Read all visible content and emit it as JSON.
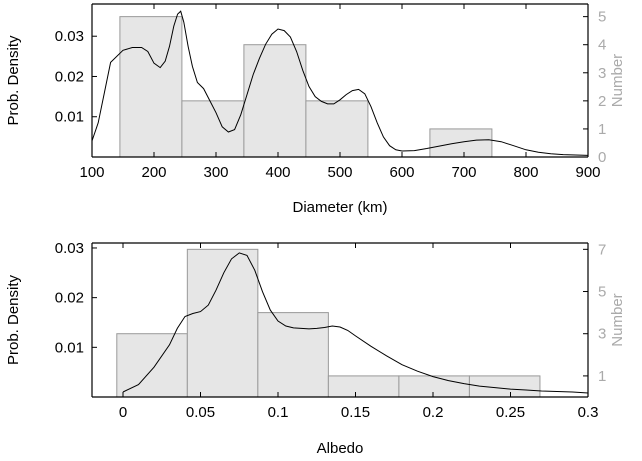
{
  "chart_data": [
    {
      "type": "bar",
      "xlabel": "Diameter (km)",
      "ylabel": "Prob. Density",
      "ylabel_right": "Number",
      "xlim": [
        100,
        900
      ],
      "ylim": [
        0,
        0.038
      ],
      "ylim_right": [
        0,
        5.45
      ],
      "x_ticks": [
        100,
        200,
        300,
        400,
        500,
        600,
        700,
        800,
        900
      ],
      "x_tick_labels": [
        "100",
        "200",
        "300",
        "400",
        "500",
        "600",
        "700",
        "800",
        "900"
      ],
      "y_ticks": [
        0.01,
        0.02,
        0.03
      ],
      "y_tick_labels": [
        "0.01",
        "0.02",
        "0.03"
      ],
      "y_right_ticks": [
        0,
        1,
        2,
        3,
        4,
        5
      ],
      "y_right_tick_labels": [
        "0",
        "1",
        "2",
        "3",
        "4",
        "5"
      ],
      "bar_color": "#e6e6e6",
      "bar_edge": "#999999",
      "histogram": {
        "bin_edges": [
          145,
          245,
          345,
          445,
          545,
          645,
          745
        ],
        "counts": [
          5,
          2,
          4,
          2,
          0,
          1
        ]
      },
      "density_curve": {
        "x": [
          100,
          110,
          120,
          130,
          150,
          165,
          180,
          190,
          200,
          210,
          218,
          225,
          232,
          238,
          243,
          248,
          255,
          262,
          270,
          280,
          290,
          300,
          310,
          320,
          330,
          340,
          350,
          360,
          370,
          380,
          390,
          400,
          410,
          420,
          430,
          440,
          450,
          460,
          470,
          480,
          490,
          500,
          510,
          520,
          530,
          540,
          550,
          560,
          570,
          580,
          590,
          600,
          620,
          640,
          660,
          680,
          700,
          720,
          740,
          760,
          780,
          800,
          820,
          840,
          860,
          880,
          900
        ],
        "y": [
          0.004,
          0.0085,
          0.016,
          0.0235,
          0.0265,
          0.0272,
          0.0272,
          0.0262,
          0.0233,
          0.0222,
          0.0238,
          0.0275,
          0.0325,
          0.0355,
          0.0362,
          0.0335,
          0.0275,
          0.0225,
          0.0185,
          0.017,
          0.014,
          0.011,
          0.0075,
          0.0062,
          0.0068,
          0.0105,
          0.0155,
          0.0205,
          0.0245,
          0.028,
          0.0305,
          0.0318,
          0.0314,
          0.0298,
          0.0262,
          0.0215,
          0.0175,
          0.015,
          0.0138,
          0.0132,
          0.0132,
          0.0142,
          0.0155,
          0.0165,
          0.0168,
          0.0157,
          0.0125,
          0.0085,
          0.005,
          0.0028,
          0.0018,
          0.0015,
          0.0016,
          0.0021,
          0.0027,
          0.0033,
          0.0038,
          0.0042,
          0.0043,
          0.0038,
          0.0028,
          0.0018,
          0.0012,
          0.0008,
          0.0006,
          0.0005,
          0.0004
        ]
      }
    },
    {
      "type": "bar",
      "xlabel": "Albedo",
      "ylabel": "Prob. Density",
      "ylabel_right": "Number",
      "xlim": [
        -0.02,
        0.3
      ],
      "ylim": [
        0,
        0.031
      ],
      "ylim_right": [
        0,
        7.3
      ],
      "x_ticks": [
        0,
        0.05,
        0.1,
        0.15,
        0.2,
        0.25,
        0.3
      ],
      "x_tick_labels": [
        "0",
        "0.05",
        "0.1",
        "0.15",
        "0.2",
        "0.25",
        "0.3"
      ],
      "y_ticks": [
        0.01,
        0.02,
        0.03
      ],
      "y_tick_labels": [
        "0.01",
        "0.02",
        "0.03"
      ],
      "y_right_ticks": [
        1,
        3,
        5,
        7
      ],
      "y_right_tick_labels": [
        "1",
        "3",
        "5",
        "7"
      ],
      "bar_color": "#e6e6e6",
      "bar_edge": "#999999",
      "histogram": {
        "bin_edges": [
          -0.004,
          0.0415,
          0.087,
          0.1325,
          0.178,
          0.2235,
          0.269
        ],
        "counts": [
          3,
          7,
          4,
          1,
          1,
          1
        ]
      },
      "density_curve": {
        "x": [
          0,
          0.01,
          0.02,
          0.03,
          0.035,
          0.04,
          0.045,
          0.05,
          0.055,
          0.06,
          0.065,
          0.07,
          0.075,
          0.08,
          0.085,
          0.09,
          0.095,
          0.1,
          0.105,
          0.11,
          0.115,
          0.12,
          0.125,
          0.13,
          0.135,
          0.14,
          0.145,
          0.15,
          0.16,
          0.17,
          0.18,
          0.19,
          0.2,
          0.21,
          0.22,
          0.23,
          0.24,
          0.25,
          0.26,
          0.27,
          0.28,
          0.29,
          0.3
        ],
        "y": [
          0.001,
          0.0025,
          0.006,
          0.0105,
          0.0138,
          0.0162,
          0.0168,
          0.0172,
          0.0185,
          0.0215,
          0.025,
          0.0278,
          0.029,
          0.0285,
          0.0255,
          0.0212,
          0.0175,
          0.0153,
          0.0143,
          0.0139,
          0.0138,
          0.0137,
          0.0138,
          0.014,
          0.0143,
          0.0141,
          0.0134,
          0.0123,
          0.0102,
          0.0083,
          0.0065,
          0.0052,
          0.0041,
          0.0033,
          0.0027,
          0.0022,
          0.0019,
          0.0016,
          0.0014,
          0.0012,
          0.0011,
          0.001,
          0.0008
        ]
      }
    }
  ]
}
